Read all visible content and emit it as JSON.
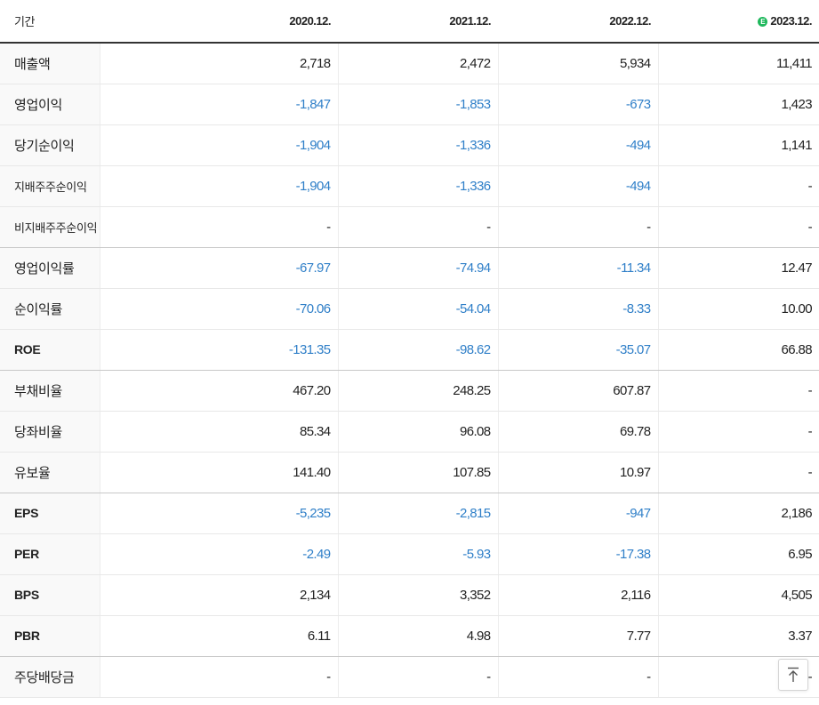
{
  "header": {
    "period_label": "기간",
    "periods": [
      "2020.12.",
      "2021.12.",
      "2022.12.",
      "2023.12."
    ],
    "estimate_badge": "E"
  },
  "rows": [
    {
      "label": "매출액",
      "values": [
        "2,718",
        "2,472",
        "5,934",
        "11,411"
      ]
    },
    {
      "label": "영업이익",
      "values": [
        "-1,847",
        "-1,853",
        "-673",
        "1,423"
      ]
    },
    {
      "label": "당기순이익",
      "values": [
        "-1,904",
        "-1,336",
        "-494",
        "1,141"
      ]
    },
    {
      "label": "지배주주순이익",
      "values": [
        "-1,904",
        "-1,336",
        "-494",
        "-"
      ]
    },
    {
      "label": "비지배주주순이익",
      "values": [
        "-",
        "-",
        "-",
        "-"
      ]
    },
    {
      "label": "영업이익률",
      "values": [
        "-67.97",
        "-74.94",
        "-11.34",
        "12.47"
      ]
    },
    {
      "label": "순이익률",
      "values": [
        "-70.06",
        "-54.04",
        "-8.33",
        "10.00"
      ]
    },
    {
      "label": "ROE",
      "values": [
        "-131.35",
        "-98.62",
        "-35.07",
        "66.88"
      ]
    },
    {
      "label": "부채비율",
      "values": [
        "467.20",
        "248.25",
        "607.87",
        "-"
      ]
    },
    {
      "label": "당좌비율",
      "values": [
        "85.34",
        "96.08",
        "69.78",
        "-"
      ]
    },
    {
      "label": "유보율",
      "values": [
        "141.40",
        "107.85",
        "10.97",
        "-"
      ]
    },
    {
      "label": "EPS",
      "values": [
        "-5,235",
        "-2,815",
        "-947",
        "2,186"
      ]
    },
    {
      "label": "PER",
      "values": [
        "-2.49",
        "-5.93",
        "-17.38",
        "6.95"
      ]
    },
    {
      "label": "BPS",
      "values": [
        "2,134",
        "3,352",
        "2,116",
        "4,505"
      ]
    },
    {
      "label": "PBR",
      "values": [
        "6.11",
        "4.98",
        "7.77",
        "3.37"
      ]
    },
    {
      "label": "주당배당금",
      "values": [
        "-",
        "-",
        "-",
        "-"
      ]
    }
  ],
  "colors": {
    "negative": "#2f7fc8",
    "estimate_badge": "#1fb85c",
    "header_rule": "#333333"
  },
  "controls": {
    "scroll_top_icon": "arrow-up-to-top-icon"
  }
}
